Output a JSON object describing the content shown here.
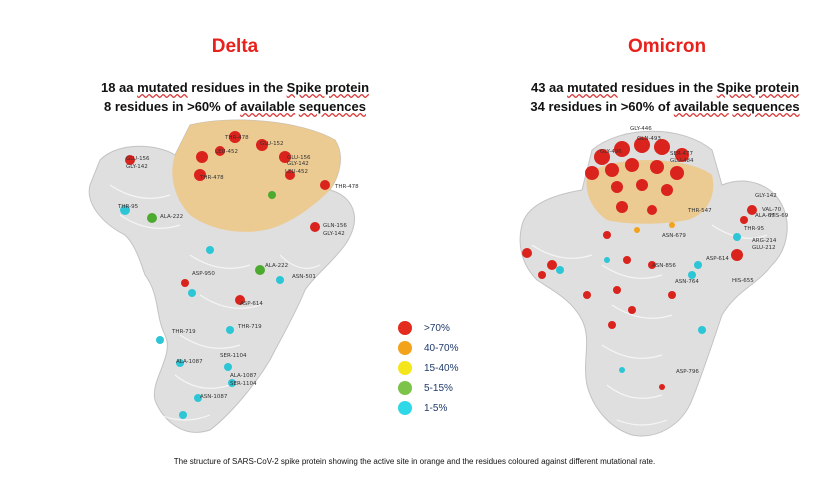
{
  "panels": {
    "delta": {
      "title": "Delta",
      "line1_prefix": "18 aa ",
      "line1_u1": "mutated",
      "line1_mid": " residues in the ",
      "line1_u2": "Spike protein",
      "line2_prefix": "8 residues in >60% of ",
      "line2_u1": "available",
      "line2_mid": " ",
      "line2_u2": "sequences",
      "residue_labels": [
        "THR-478",
        "GLU-152",
        "LEU-452",
        "GLU-156",
        "GLY-142",
        "GLU-156",
        "GLY-142",
        "LEU-452",
        "THR-478",
        "THR-478",
        "THR-95",
        "ALA-222",
        "GLN-156",
        "GLY-142",
        "ASP-950",
        "ALA-222",
        "ASN-501",
        "ASP-614",
        "THR-719",
        "THR-719",
        "ALA-1087",
        "SER-1104",
        "ALA-1087",
        "SER-1104",
        "ASN-1087"
      ]
    },
    "omicron": {
      "title": "Omicron",
      "line1_prefix": "43 aa ",
      "line1_u1": "mutated",
      "line1_mid": " residues in the ",
      "line1_u2": "Spike protein",
      "line2_prefix": "34 residues in >60% of ",
      "line2_u1": "available",
      "line2_mid": " ",
      "line2_u2": "sequences",
      "residue_labels": [
        "GLY-446",
        "GLN-493",
        "GLY-496",
        "SER-477",
        "GLU-484",
        "THR-547",
        "GLY-142",
        "VAL-70",
        "ALA-67",
        "HIS-69",
        "THR-95",
        "ARG-214",
        "GLU-212",
        "ASP-614",
        "HIS-655",
        "ASN-764",
        "ASN-856",
        "ASN-679",
        "ASP-796"
      ]
    }
  },
  "legend": [
    {
      "label": ">70%",
      "color": "#e32b1e"
    },
    {
      "label": "40-70%",
      "color": "#f3a31b"
    },
    {
      "label": "15-40%",
      "color": "#f5e61c"
    },
    {
      "label": "5-15%",
      "color": "#7cc34a"
    },
    {
      "label": "1-5%",
      "color": "#2fd8e6"
    }
  ],
  "caption": "The structure of SARS-CoV-2 spike protein showing the active site in orange and the residues coloured against different mutational rate."
}
